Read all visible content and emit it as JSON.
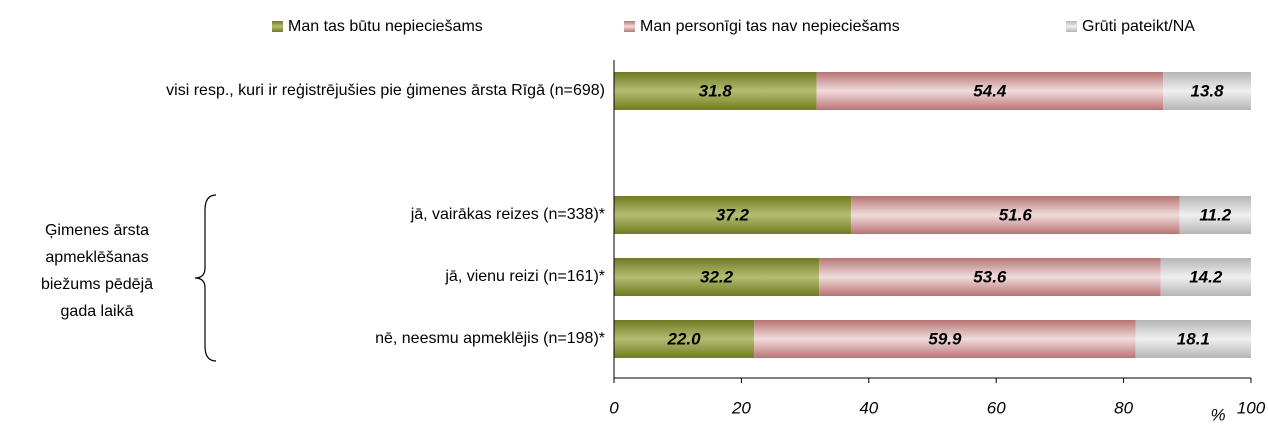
{
  "chart_data": {
    "type": "stacked-bar-horizontal",
    "categories": [
      "visi resp., kuri ir reģistrējušies pie ģimenes ārsta Rīgā (n=698)",
      null,
      "jā, vairākas reizes (n=338)*",
      "jā, vienu reizi (n=161)*",
      "nē, neesmu apmeklējis (n=198)*"
    ],
    "series": [
      {
        "name": "Man tas būtu nepieciešams",
        "color": "#8f9a3a",
        "values": [
          31.8,
          null,
          37.2,
          32.2,
          22.0
        ],
        "value_labels": [
          "31.8",
          null,
          "37.2",
          "32.2",
          "22.0"
        ]
      },
      {
        "name": "Man personīgi tas nav nepieciešams",
        "color": "#c48a8a",
        "values": [
          54.4,
          null,
          51.6,
          53.6,
          59.9
        ],
        "value_labels": [
          "54.4",
          null,
          "51.6",
          "53.6",
          "59.9"
        ]
      },
      {
        "name": "Grūti pateikt/NA",
        "color": "#c8c8c8",
        "values": [
          13.8,
          null,
          11.2,
          14.2,
          18.1
        ],
        "value_labels": [
          "13.8",
          null,
          "11.2",
          "14.2",
          "18.1"
        ]
      }
    ],
    "xlim": [
      0,
      100
    ],
    "xticks": [
      0,
      20,
      40,
      60,
      80,
      100
    ],
    "x_axis_label": "%",
    "annotation": [
      "Ģimenes ārsta",
      "apmeklēšanas",
      "biežums pēdējā",
      "gada laikā"
    ],
    "legend": "top"
  }
}
